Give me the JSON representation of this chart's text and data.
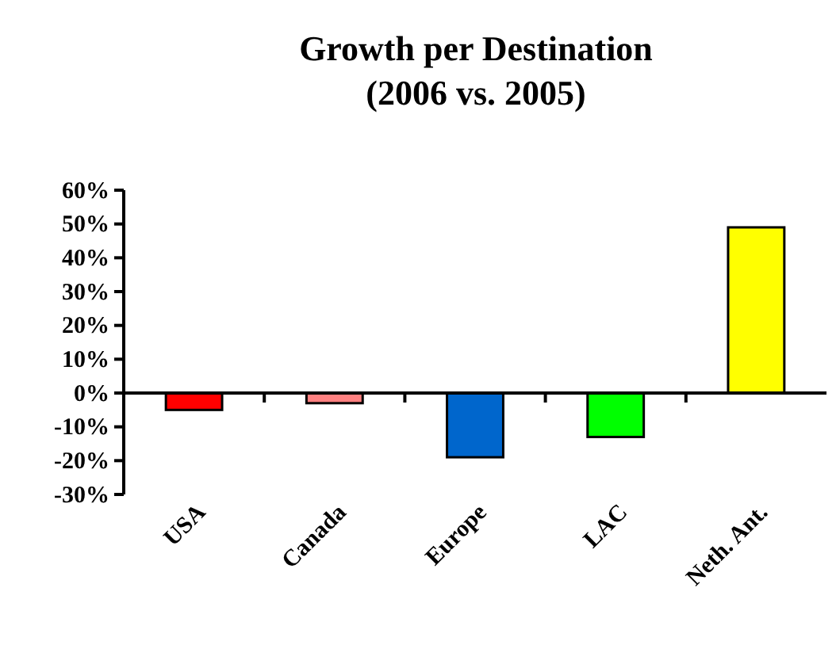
{
  "chart_data": {
    "type": "bar",
    "title": "Growth per Destination\n(2006 vs. 2005)",
    "categories": [
      "USA",
      "Canada",
      "Europe",
      "LAC",
      "Neth. Ant."
    ],
    "values": [
      -5,
      -3,
      -19,
      -13,
      49
    ],
    "colors": [
      "#ff0000",
      "#ff8080",
      "#0066cc",
      "#00ff00",
      "#ffff00"
    ],
    "ylim": [
      -30,
      60
    ],
    "yticks": [
      {
        "value": -30,
        "label": "-30%"
      },
      {
        "value": -20,
        "label": "-20%"
      },
      {
        "value": -10,
        "label": "-10%"
      },
      {
        "value": 0,
        "label": "0%"
      },
      {
        "value": 10,
        "label": "10%"
      },
      {
        "value": 20,
        "label": "20%"
      },
      {
        "value": 30,
        "label": "30%"
      },
      {
        "value": 40,
        "label": "40%"
      },
      {
        "value": 50,
        "label": "50%"
      },
      {
        "value": 60,
        "label": "60%"
      }
    ]
  }
}
